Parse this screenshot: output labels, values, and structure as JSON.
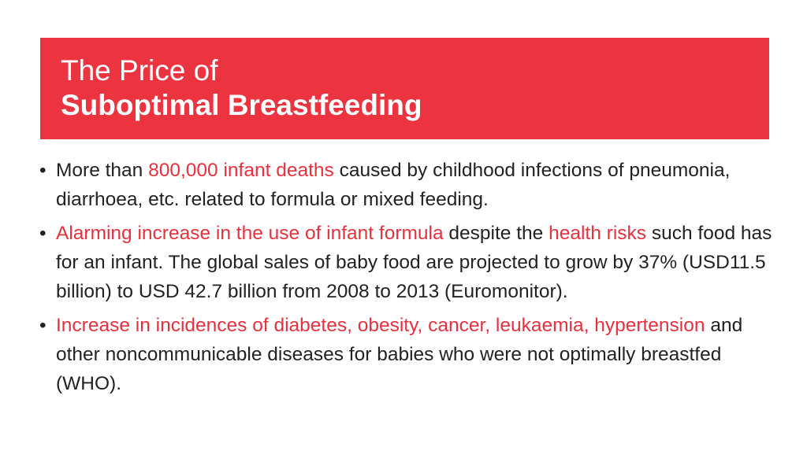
{
  "title": {
    "line1": "The Price of",
    "line2": "Suboptimal Breastfeeding"
  },
  "bullets": [
    {
      "segments": [
        {
          "text": "More than ",
          "highlight": false
        },
        {
          "text": "800,000 infant deaths",
          "highlight": true
        },
        {
          "text": " caused by childhood infections of pneumonia, diarrhoea, etc. related to formula or mixed feeding.",
          "highlight": false
        }
      ]
    },
    {
      "segments": [
        {
          "text": "Alarming increase in the use of infant formula",
          "highlight": true
        },
        {
          "text": " despite the ",
          "highlight": false
        },
        {
          "text": "health risks",
          "highlight": true
        },
        {
          "text": " such food has for an infant. The global sales of baby food are projected to grow by 37% (USD11.5 billion) to USD 42.7 billion from 2008 to 2013 (Euromonitor).",
          "highlight": false
        }
      ]
    },
    {
      "segments": [
        {
          "text": "Increase in incidences of diabetes, obesity, cancer, leukaemia, hypertension",
          "highlight": true
        },
        {
          "text": " and other noncommunicable diseases for babies who were not optimally breastfed (WHO).",
          "highlight": false
        }
      ]
    }
  ],
  "colors": {
    "banner": "#ec3440",
    "highlight": "#e8313c",
    "body_text": "#222222"
  }
}
